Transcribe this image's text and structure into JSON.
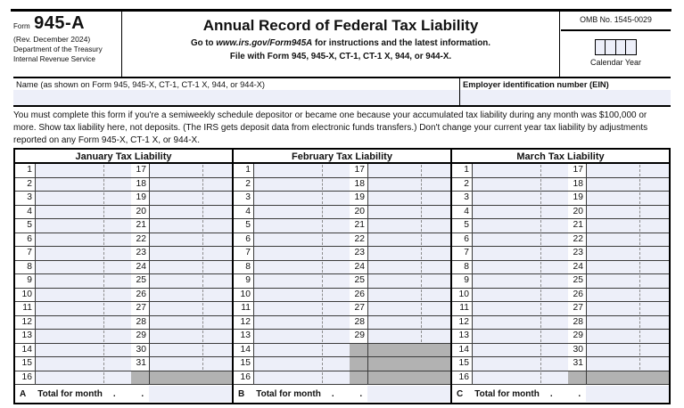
{
  "form": {
    "form_label": "Form",
    "form_number": "945-A",
    "revision": "(Rev. December 2024)",
    "agency_line1": "Department of the Treasury",
    "agency_line2": "Internal Revenue Service",
    "title": "Annual Record of Federal Tax Liability",
    "instruction_go_prefix": "Go to ",
    "instruction_url": "www.irs.gov/Form945A",
    "instruction_go_suffix": " for instructions and the latest information.",
    "instruction_file": "File with Form 945, 945-X, CT-1, CT-1 X, 944, or 944-X.",
    "omb": "OMB No. 1545-0029",
    "calendar_year_label": "Calendar Year",
    "calendar_year_boxes": 4
  },
  "fields": {
    "name_label": "Name (as shown on Form 945, 945-X, CT-1, CT-1 X, 944, or 944-X)",
    "name_value": "",
    "ein_label": "Employer identification number (EIN)",
    "ein_value": ""
  },
  "notice": "You must complete this form if you're a semiweekly schedule depositor or became one because your accumulated tax liability during any month was $100,000 or more. Show tax liability here, not deposits. (The IRS gets deposit data from electronic funds transfers.) Don't change your current year tax liability by adjustments reported on any Form 945-X, CT-1 X, or 944-X.",
  "colors": {
    "entry_fill": "#edeff9",
    "blocked_gray": "#b2b2b2",
    "line_black": "#000000"
  },
  "table": {
    "months": [
      {
        "letter": "A",
        "header": "January Tax Liability",
        "total_label": "Total for month",
        "total_dots": ". .",
        "total_value": "",
        "rows": [
          {
            "day": "1",
            "day2": "17",
            "value1": "",
            "value2": "",
            "blocked": false
          },
          {
            "day": "2",
            "day2": "18",
            "value1": "",
            "value2": "",
            "blocked": false
          },
          {
            "day": "3",
            "day2": "19",
            "value1": "",
            "value2": "",
            "blocked": false
          },
          {
            "day": "4",
            "day2": "20",
            "value1": "",
            "value2": "",
            "blocked": false
          },
          {
            "day": "5",
            "day2": "21",
            "value1": "",
            "value2": "",
            "blocked": false
          },
          {
            "day": "6",
            "day2": "22",
            "value1": "",
            "value2": "",
            "blocked": false
          },
          {
            "day": "7",
            "day2": "23",
            "value1": "",
            "value2": "",
            "blocked": false
          },
          {
            "day": "8",
            "day2": "24",
            "value1": "",
            "value2": "",
            "blocked": false
          },
          {
            "day": "9",
            "day2": "25",
            "value1": "",
            "value2": "",
            "blocked": false
          },
          {
            "day": "10",
            "day2": "26",
            "value1": "",
            "value2": "",
            "blocked": false
          },
          {
            "day": "11",
            "day2": "27",
            "value1": "",
            "value2": "",
            "blocked": false
          },
          {
            "day": "12",
            "day2": "28",
            "value1": "",
            "value2": "",
            "blocked": false
          },
          {
            "day": "13",
            "day2": "29",
            "value1": "",
            "value2": "",
            "blocked": false
          },
          {
            "day": "14",
            "day2": "30",
            "value1": "",
            "value2": "",
            "blocked": false
          },
          {
            "day": "15",
            "day2": "31",
            "value1": "",
            "value2": "",
            "blocked": false
          },
          {
            "day": "16",
            "day2": "",
            "value1": "",
            "value2": "",
            "blocked": true
          }
        ]
      },
      {
        "letter": "B",
        "header": "February Tax Liability",
        "total_label": "Total for month",
        "total_dots": ". .",
        "total_value": "",
        "rows": [
          {
            "day": "1",
            "day2": "17",
            "value1": "",
            "value2": "",
            "blocked": false
          },
          {
            "day": "2",
            "day2": "18",
            "value1": "",
            "value2": "",
            "blocked": false
          },
          {
            "day": "3",
            "day2": "19",
            "value1": "",
            "value2": "",
            "blocked": false
          },
          {
            "day": "4",
            "day2": "20",
            "value1": "",
            "value2": "",
            "blocked": false
          },
          {
            "day": "5",
            "day2": "21",
            "value1": "",
            "value2": "",
            "blocked": false
          },
          {
            "day": "6",
            "day2": "22",
            "value1": "",
            "value2": "",
            "blocked": false
          },
          {
            "day": "7",
            "day2": "23",
            "value1": "",
            "value2": "",
            "blocked": false
          },
          {
            "day": "8",
            "day2": "24",
            "value1": "",
            "value2": "",
            "blocked": false
          },
          {
            "day": "9",
            "day2": "25",
            "value1": "",
            "value2": "",
            "blocked": false
          },
          {
            "day": "10",
            "day2": "26",
            "value1": "",
            "value2": "",
            "blocked": false
          },
          {
            "day": "11",
            "day2": "27",
            "value1": "",
            "value2": "",
            "blocked": false
          },
          {
            "day": "12",
            "day2": "28",
            "value1": "",
            "value2": "",
            "blocked": false
          },
          {
            "day": "13",
            "day2": "29",
            "value1": "",
            "value2": "",
            "blocked": false
          },
          {
            "day": "14",
            "day2": "",
            "value1": "",
            "value2": "",
            "blocked": true
          },
          {
            "day": "15",
            "day2": "",
            "value1": "",
            "value2": "",
            "blocked": true
          },
          {
            "day": "16",
            "day2": "",
            "value1": "",
            "value2": "",
            "blocked": true
          }
        ]
      },
      {
        "letter": "C",
        "header": "March Tax Liability",
        "total_label": "Total for month",
        "total_dots": ". .",
        "total_value": "",
        "rows": [
          {
            "day": "1",
            "day2": "17",
            "value1": "",
            "value2": "",
            "blocked": false
          },
          {
            "day": "2",
            "day2": "18",
            "value1": "",
            "value2": "",
            "blocked": false
          },
          {
            "day": "3",
            "day2": "19",
            "value1": "",
            "value2": "",
            "blocked": false
          },
          {
            "day": "4",
            "day2": "20",
            "value1": "",
            "value2": "",
            "blocked": false
          },
          {
            "day": "5",
            "day2": "21",
            "value1": "",
            "value2": "",
            "blocked": false
          },
          {
            "day": "6",
            "day2": "22",
            "value1": "",
            "value2": "",
            "blocked": false
          },
          {
            "day": "7",
            "day2": "23",
            "value1": "",
            "value2": "",
            "blocked": false
          },
          {
            "day": "8",
            "day2": "24",
            "value1": "",
            "value2": "",
            "blocked": false
          },
          {
            "day": "9",
            "day2": "25",
            "value1": "",
            "value2": "",
            "blocked": false
          },
          {
            "day": "10",
            "day2": "26",
            "value1": "",
            "value2": "",
            "blocked": false
          },
          {
            "day": "11",
            "day2": "27",
            "value1": "",
            "value2": "",
            "blocked": false
          },
          {
            "day": "12",
            "day2": "28",
            "value1": "",
            "value2": "",
            "blocked": false
          },
          {
            "day": "13",
            "day2": "29",
            "value1": "",
            "value2": "",
            "blocked": false
          },
          {
            "day": "14",
            "day2": "30",
            "value1": "",
            "value2": "",
            "blocked": false
          },
          {
            "day": "15",
            "day2": "31",
            "value1": "",
            "value2": "",
            "blocked": false
          },
          {
            "day": "16",
            "day2": "",
            "value1": "",
            "value2": "",
            "blocked": true
          }
        ]
      }
    ]
  }
}
